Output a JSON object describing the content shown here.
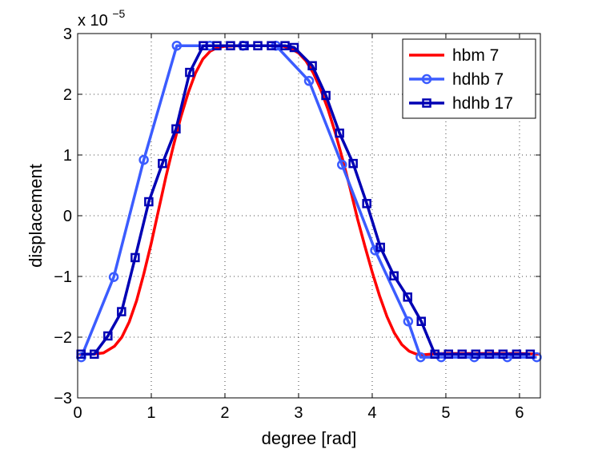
{
  "chart_data": {
    "type": "line",
    "title": "",
    "xlabel": "degree [rad]",
    "ylabel": "displacement",
    "y_multiplier": {
      "base": "x 10",
      "exponent": "−5"
    },
    "xlim": [
      0,
      6.2832
    ],
    "ylim": [
      -3,
      3
    ],
    "x_ticks": [
      0,
      1,
      2,
      3,
      4,
      5,
      6
    ],
    "y_ticks": [
      -3,
      -2,
      -1,
      0,
      1,
      2,
      3
    ],
    "x_tick_labels": [
      "0",
      "1",
      "2",
      "3",
      "4",
      "5",
      "6"
    ],
    "y_tick_labels": [
      "−3",
      "−2",
      "−1",
      "0",
      "1",
      "2",
      "3"
    ],
    "grid": true,
    "legend_position": "top-right",
    "series": [
      {
        "name": "hbm 7",
        "color": "#ff0000",
        "marker": "none",
        "x": [
          0.0,
          0.2,
          0.35,
          0.5,
          0.6,
          0.7,
          0.8,
          0.9,
          1.0,
          1.1,
          1.2,
          1.3,
          1.4,
          1.5,
          1.6,
          1.7,
          1.8,
          1.9,
          2.0,
          2.2,
          2.4,
          2.6,
          2.8,
          2.9,
          3.0,
          3.1,
          3.2,
          3.3,
          3.4,
          3.5,
          3.6,
          3.7,
          3.8,
          3.9,
          4.0,
          4.1,
          4.2,
          4.3,
          4.4,
          4.5,
          4.6,
          4.7,
          4.8,
          4.9,
          5.0,
          5.2,
          5.5,
          6.0,
          6.2832
        ],
        "y": [
          -2.28,
          -2.28,
          -2.26,
          -2.15,
          -2.0,
          -1.75,
          -1.4,
          -0.95,
          -0.45,
          0.1,
          0.65,
          1.15,
          1.62,
          2.02,
          2.35,
          2.58,
          2.71,
          2.77,
          2.79,
          2.8,
          2.8,
          2.8,
          2.79,
          2.75,
          2.68,
          2.55,
          2.35,
          2.08,
          1.75,
          1.36,
          0.92,
          0.45,
          -0.05,
          -0.5,
          -0.93,
          -1.32,
          -1.66,
          -1.93,
          -2.12,
          -2.23,
          -2.28,
          -2.29,
          -2.28,
          -2.27,
          -2.27,
          -2.27,
          -2.27,
          -2.27,
          -2.28
        ]
      },
      {
        "name": "hdhb 7",
        "color": "#3b5cff",
        "marker": "circle",
        "x": [
          0.049,
          0.49,
          0.898,
          1.346,
          1.795,
          2.244,
          2.693,
          3.142,
          3.59,
          4.039,
          4.488,
          4.657,
          4.937,
          5.386,
          5.835,
          6.234
        ],
        "y": [
          -2.33,
          -1.01,
          0.92,
          2.8,
          2.8,
          2.8,
          2.8,
          2.22,
          0.84,
          -0.57,
          -1.74,
          -2.33,
          -2.33,
          -2.33,
          -2.33,
          -2.33
        ]
      },
      {
        "name": "hdhb 17",
        "color": "#0000b4",
        "marker": "square",
        "x": [
          0.046,
          0.226,
          0.411,
          0.596,
          0.781,
          0.966,
          1.151,
          1.336,
          1.521,
          1.706,
          1.891,
          2.076,
          2.261,
          2.446,
          2.631,
          2.816,
          2.94,
          3.186,
          3.371,
          3.556,
          3.741,
          3.926,
          4.111,
          4.296,
          4.481,
          4.666,
          4.851,
          5.036,
          5.221,
          5.406,
          5.591,
          5.776,
          5.961,
          6.146
        ],
        "y": [
          -2.28,
          -2.28,
          -1.98,
          -1.58,
          -0.69,
          0.23,
          0.86,
          1.43,
          2.36,
          2.8,
          2.8,
          2.8,
          2.8,
          2.8,
          2.8,
          2.8,
          2.77,
          2.47,
          1.98,
          1.36,
          0.86,
          0.2,
          -0.52,
          -0.99,
          -1.34,
          -1.74,
          -2.28,
          -2.28,
          -2.28,
          -2.28,
          -2.28,
          -2.28,
          -2.28,
          -2.28
        ]
      }
    ]
  }
}
